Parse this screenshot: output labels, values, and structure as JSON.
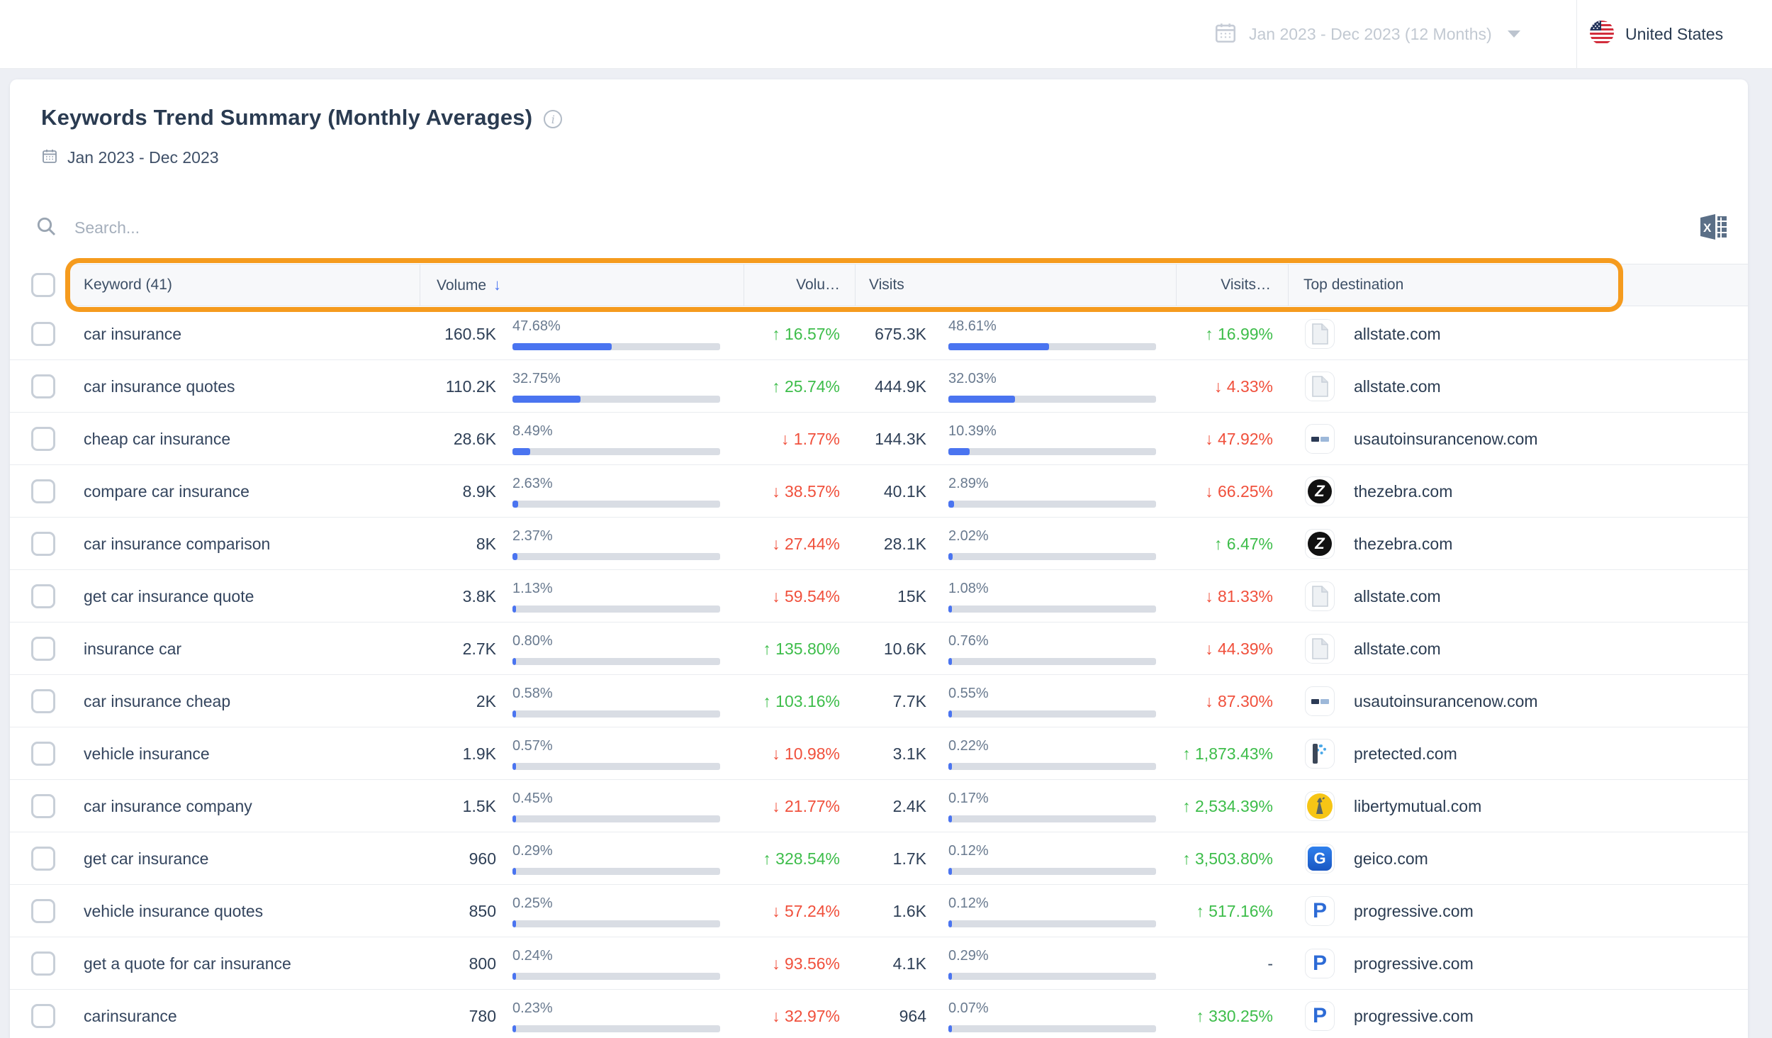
{
  "topbar": {
    "date_range": "Jan 2023 - Dec 2023 (12 Months)",
    "country": "United States"
  },
  "header": {
    "title": "Keywords Trend Summary (Monthly Averages)",
    "date_range": "Jan 2023 - Dec 2023"
  },
  "search": {
    "placeholder": "Search..."
  },
  "table": {
    "columns": {
      "keyword": "Keyword (41)",
      "volume": "Volume",
      "volume_change": "Volu…",
      "visits": "Visits",
      "visits_change": "Visits…",
      "top_destination": "Top destination"
    },
    "sorted_column": "volume",
    "rows": [
      {
        "keyword": "car insurance",
        "volume": "160.5K",
        "volume_share": "47.68%",
        "volume_share_pct": 47.68,
        "volume_trend": "up",
        "volume_change": "16.57%",
        "visits": "675.3K",
        "visits_share": "48.61%",
        "visits_share_pct": 48.61,
        "visits_trend": "up",
        "visits_change": "16.99%",
        "destination": "allstate.com",
        "favicon": "doc"
      },
      {
        "keyword": "car insurance quotes",
        "volume": "110.2K",
        "volume_share": "32.75%",
        "volume_share_pct": 32.75,
        "volume_trend": "up",
        "volume_change": "25.74%",
        "visits": "444.9K",
        "visits_share": "32.03%",
        "visits_share_pct": 32.03,
        "visits_trend": "down",
        "visits_change": "4.33%",
        "destination": "allstate.com",
        "favicon": "doc"
      },
      {
        "keyword": "cheap car insurance",
        "volume": "28.6K",
        "volume_share": "8.49%",
        "volume_share_pct": 8.49,
        "volume_trend": "down",
        "volume_change": "1.77%",
        "visits": "144.3K",
        "visits_share": "10.39%",
        "visits_share_pct": 10.39,
        "visits_trend": "down",
        "visits_change": "47.92%",
        "destination": "usautoinsurancenow.com",
        "favicon": "usauto"
      },
      {
        "keyword": "compare car insurance",
        "volume": "8.9K",
        "volume_share": "2.63%",
        "volume_share_pct": 2.63,
        "volume_trend": "down",
        "volume_change": "38.57%",
        "visits": "40.1K",
        "visits_share": "2.89%",
        "visits_share_pct": 2.89,
        "visits_trend": "down",
        "visits_change": "66.25%",
        "destination": "thezebra.com",
        "favicon": "zebra"
      },
      {
        "keyword": "car insurance comparison",
        "volume": "8K",
        "volume_share": "2.37%",
        "volume_share_pct": 2.37,
        "volume_trend": "down",
        "volume_change": "27.44%",
        "visits": "28.1K",
        "visits_share": "2.02%",
        "visits_share_pct": 2.02,
        "visits_trend": "up",
        "visits_change": "6.47%",
        "destination": "thezebra.com",
        "favicon": "zebra"
      },
      {
        "keyword": "get car insurance quote",
        "volume": "3.8K",
        "volume_share": "1.13%",
        "volume_share_pct": 1.13,
        "volume_trend": "down",
        "volume_change": "59.54%",
        "visits": "15K",
        "visits_share": "1.08%",
        "visits_share_pct": 1.08,
        "visits_trend": "down",
        "visits_change": "81.33%",
        "destination": "allstate.com",
        "favicon": "doc"
      },
      {
        "keyword": "insurance car",
        "volume": "2.7K",
        "volume_share": "0.80%",
        "volume_share_pct": 0.8,
        "volume_trend": "up",
        "volume_change": "135.80%",
        "visits": "10.6K",
        "visits_share": "0.76%",
        "visits_share_pct": 0.76,
        "visits_trend": "down",
        "visits_change": "44.39%",
        "destination": "allstate.com",
        "favicon": "doc"
      },
      {
        "keyword": "car insurance cheap",
        "volume": "2K",
        "volume_share": "0.58%",
        "volume_share_pct": 0.58,
        "volume_trend": "up",
        "volume_change": "103.16%",
        "visits": "7.7K",
        "visits_share": "0.55%",
        "visits_share_pct": 0.55,
        "visits_trend": "down",
        "visits_change": "87.30%",
        "destination": "usautoinsurancenow.com",
        "favicon": "usauto"
      },
      {
        "keyword": "vehicle insurance",
        "volume": "1.9K",
        "volume_share": "0.57%",
        "volume_share_pct": 0.57,
        "volume_trend": "down",
        "volume_change": "10.98%",
        "visits": "3.1K",
        "visits_share": "0.22%",
        "visits_share_pct": 0.22,
        "visits_trend": "up",
        "visits_change": "1,873.43%",
        "destination": "pretected.com",
        "favicon": "pretected"
      },
      {
        "keyword": "car insurance company",
        "volume": "1.5K",
        "volume_share": "0.45%",
        "volume_share_pct": 0.45,
        "volume_trend": "down",
        "volume_change": "21.77%",
        "visits": "2.4K",
        "visits_share": "0.17%",
        "visits_share_pct": 0.17,
        "visits_trend": "up",
        "visits_change": "2,534.39%",
        "destination": "libertymutual.com",
        "favicon": "liberty"
      },
      {
        "keyword": "get car insurance",
        "volume": "960",
        "volume_share": "0.29%",
        "volume_share_pct": 0.29,
        "volume_trend": "up",
        "volume_change": "328.54%",
        "visits": "1.7K",
        "visits_share": "0.12%",
        "visits_share_pct": 0.12,
        "visits_trend": "up",
        "visits_change": "3,503.80%",
        "destination": "geico.com",
        "favicon": "geico"
      },
      {
        "keyword": "vehicle insurance quotes",
        "volume": "850",
        "volume_share": "0.25%",
        "volume_share_pct": 0.25,
        "volume_trend": "down",
        "volume_change": "57.24%",
        "visits": "1.6K",
        "visits_share": "0.12%",
        "visits_share_pct": 0.12,
        "visits_trend": "up",
        "visits_change": "517.16%",
        "destination": "progressive.com",
        "favicon": "progressive"
      },
      {
        "keyword": "get a quote for car insurance",
        "volume": "800",
        "volume_share": "0.24%",
        "volume_share_pct": 0.24,
        "volume_trend": "down",
        "volume_change": "93.56%",
        "visits": "4.1K",
        "visits_share": "0.29%",
        "visits_share_pct": 0.29,
        "visits_trend": "none",
        "visits_change": "-",
        "destination": "progressive.com",
        "favicon": "progressive"
      },
      {
        "keyword": "carinsurance",
        "volume": "780",
        "volume_share": "0.23%",
        "volume_share_pct": 0.23,
        "volume_trend": "down",
        "volume_change": "32.97%",
        "visits": "964",
        "visits_share": "0.07%",
        "visits_share_pct": 0.07,
        "visits_trend": "up",
        "visits_change": "330.25%",
        "destination": "progressive.com",
        "favicon": "progressive"
      }
    ]
  },
  "favicon_glyphs": {
    "zebra": "Z",
    "geico": "G",
    "progressive": "P"
  },
  "icons": {
    "up_arrow": "↑",
    "down_arrow": "↓",
    "sort_arrow": "↓"
  },
  "colors": {
    "positive": "#3dbd4a",
    "negative": "#f0503c",
    "bar_fill": "#4a74f0",
    "accent_orange": "#f59b1e",
    "title": "#2a3b51"
  }
}
